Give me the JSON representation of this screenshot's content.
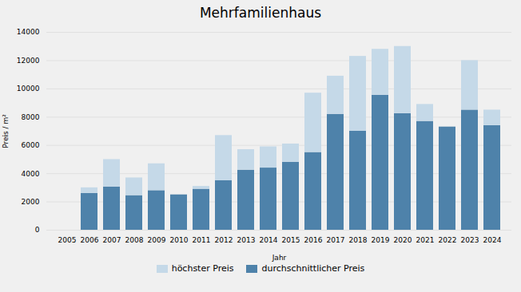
{
  "chart_data": {
    "type": "bar",
    "title": "Mehrfamilienhaus",
    "xlabel": "Jahr",
    "ylabel": "Preis / m²",
    "categories": [
      "2005",
      "2006",
      "2007",
      "2008",
      "2009",
      "2010",
      "2011",
      "2012",
      "2013",
      "2014",
      "2015",
      "2016",
      "2017",
      "2018",
      "2019",
      "2020",
      "2021",
      "2022",
      "2023",
      "2024"
    ],
    "series": [
      {
        "name": "durchschnittlicher Preis",
        "color": "#4e82aa",
        "values": [
          0,
          2600,
          3050,
          2450,
          2800,
          2500,
          2900,
          3500,
          4250,
          4400,
          4800,
          5500,
          8200,
          7000,
          9550,
          8250,
          7700,
          7300,
          8500,
          7400
        ]
      },
      {
        "name": "höchster Preis",
        "color": "#c5d9e8",
        "values": [
          0,
          400,
          1950,
          1250,
          1900,
          0,
          200,
          3200,
          1450,
          1500,
          1300,
          4200,
          2700,
          5300,
          3250,
          4750,
          1200,
          0,
          3500,
          1100
        ]
      }
    ],
    "stacked": true,
    "ylim": [
      0,
      14000
    ],
    "yticks": [
      0,
      2000,
      4000,
      6000,
      8000,
      10000,
      12000,
      14000
    ],
    "grid": true,
    "legend": "bottom"
  }
}
